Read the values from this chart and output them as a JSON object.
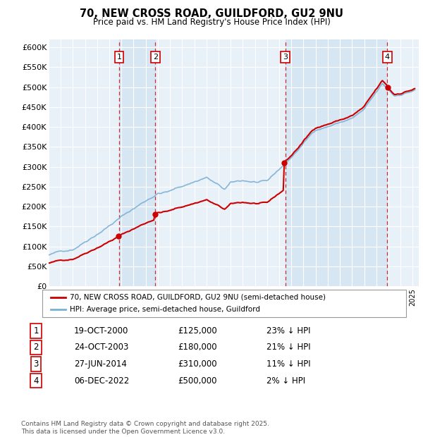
{
  "title": "70, NEW CROSS ROAD, GUILDFORD, GU2 9NU",
  "subtitle": "Price paid vs. HM Land Registry's House Price Index (HPI)",
  "legend_line1": "70, NEW CROSS ROAD, GUILDFORD, GU2 9NU (semi-detached house)",
  "legend_line2": "HPI: Average price, semi-detached house, Guildford",
  "red_color": "#cc0000",
  "blue_color": "#7ab0d4",
  "shade_color": "#ddeeff",
  "footer": "Contains HM Land Registry data © Crown copyright and database right 2025.\nThis data is licensed under the Open Government Licence v3.0.",
  "ylim": [
    0,
    620000
  ],
  "yticks": [
    0,
    50000,
    100000,
    150000,
    200000,
    250000,
    300000,
    350000,
    400000,
    450000,
    500000,
    550000,
    600000
  ],
  "ytick_labels": [
    "£0",
    "£50K",
    "£100K",
    "£150K",
    "£200K",
    "£250K",
    "£300K",
    "£350K",
    "£400K",
    "£450K",
    "£500K",
    "£550K",
    "£600K"
  ],
  "xlim_start": 1995.0,
  "xlim_end": 2025.5,
  "transactions": [
    {
      "num": 1,
      "date": "19-OCT-2000",
      "price": 125000,
      "pct": "23%",
      "x": 2000.8
    },
    {
      "num": 2,
      "date": "24-OCT-2003",
      "price": 180000,
      "pct": "21%",
      "x": 2003.8
    },
    {
      "num": 3,
      "date": "27-JUN-2014",
      "price": 310000,
      "pct": "11%",
      "x": 2014.5
    },
    {
      "num": 4,
      "date": "06-DEC-2022",
      "price": 500000,
      "pct": "2%",
      "x": 2022.9
    }
  ],
  "table_rows": [
    {
      "num": "1",
      "date": "19-OCT-2000",
      "price": "£125,000",
      "pct": "23% ↓ HPI"
    },
    {
      "num": "2",
      "date": "24-OCT-2003",
      "price": "£180,000",
      "pct": "21% ↓ HPI"
    },
    {
      "num": "3",
      "date": "27-JUN-2014",
      "price": "£310,000",
      "pct": "11% ↓ HPI"
    },
    {
      "num": "4",
      "date": "06-DEC-2022",
      "price": "£500,000",
      "pct": "2% ↓ HPI"
    }
  ]
}
